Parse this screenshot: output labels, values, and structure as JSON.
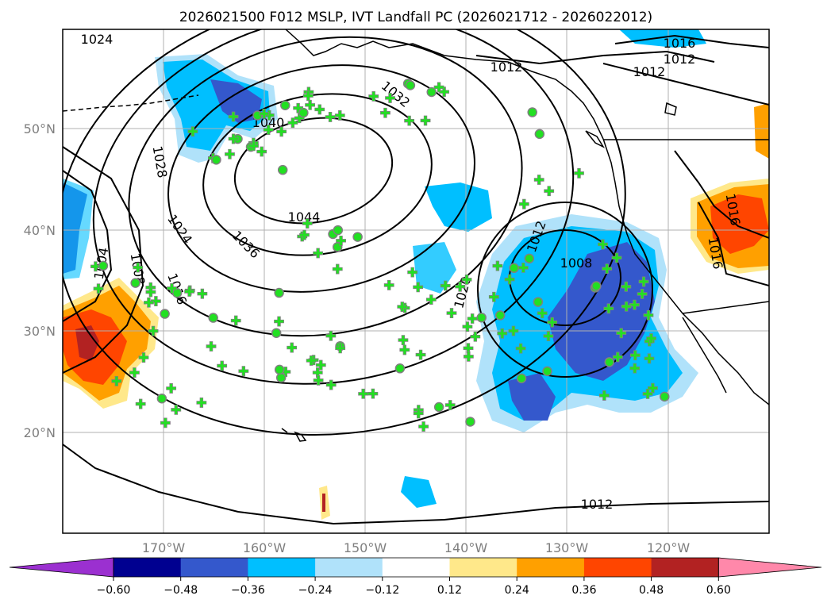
{
  "title": "2026021500 F012 MSLP, IVT Landfall PC (2026021712 - 2026022012)",
  "latitude_labels": [
    "50°N",
    "40°N",
    "30°N",
    "20°N"
  ],
  "longitude_labels": [
    "170°W",
    "160°W",
    "150°W",
    "140°W",
    "130°W",
    "120°W"
  ],
  "isobar_labels": [
    "1024",
    "1016",
    "1012",
    "1012",
    "1012",
    "1040",
    "1028",
    "1024",
    "1036",
    "1044",
    "1004",
    "1008",
    "1016",
    "1020",
    "1012",
    "1008",
    "1016",
    "1016",
    "1012",
    "1032"
  ],
  "colorbar": {
    "ticks": [
      "−0.60",
      "−0.48",
      "−0.36",
      "−0.24",
      "−0.12",
      "0.12",
      "0.24",
      "0.36",
      "0.48",
      "0.60"
    ],
    "colors": [
      "#9b30d0",
      "#000090",
      "#3458cc",
      "#00bfff",
      "#b0e2fa",
      "#ffffff",
      "#ffe88a",
      "#ffa000",
      "#ff4500",
      "#b22222",
      "#ff88aa"
    ]
  },
  "colors": {
    "neg_light": "#b0e2fa",
    "neg_mid": "#00bfff",
    "neg_strong": "#3458cc",
    "neg_max": "#000090",
    "pos_light": "#ffe88a",
    "pos_mid": "#ffa000",
    "pos_strong": "#ff4500",
    "pos_max": "#b22222",
    "markers": "#22e022",
    "marker_edge": "#808080",
    "coastline": "#000000"
  },
  "marker_types": [
    "plus",
    "circle"
  ]
}
